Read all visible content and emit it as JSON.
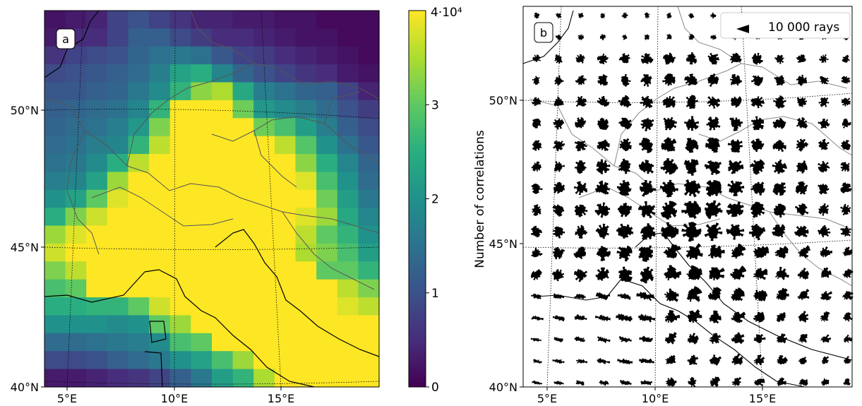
{
  "chart_data": [
    {
      "panel_label": "a",
      "type": "heatmap",
      "xlabel": "",
      "ylabel": "",
      "x_ticks": [
        "5°E",
        "10°E",
        "15°E"
      ],
      "y_ticks": [
        "40°N",
        "45°N",
        "50°N"
      ],
      "lon_range": [
        4,
        19.5
      ],
      "lat_range": [
        40,
        53.5
      ],
      "colorbar": {
        "label": "Number of correlations",
        "ticks": [
          "0",
          "1",
          "2",
          "3"
        ],
        "top_label": "4·10⁴",
        "range": [
          0,
          4
        ],
        "multiplier": "10^4",
        "colormap": "viridis"
      },
      "grid_values": [
        [
          0.2,
          0.3,
          0.4,
          0.8,
          1.0,
          0.8,
          0.6,
          0.4,
          0.4,
          0.3,
          0.3,
          0.2,
          0.2,
          0.1,
          0.1,
          0.1
        ],
        [
          0.3,
          0.5,
          0.5,
          0.8,
          1.2,
          1.2,
          0.9,
          0.7,
          0.5,
          0.5,
          0.4,
          0.3,
          0.2,
          0.2,
          0.1,
          0.1
        ],
        [
          0.6,
          0.8,
          0.9,
          1.0,
          1.3,
          1.5,
          1.6,
          1.5,
          1.1,
          0.8,
          0.7,
          0.5,
          0.4,
          0.3,
          0.2,
          0.1
        ],
        [
          0.9,
          1.0,
          1.1,
          1.2,
          1.4,
          1.7,
          2.3,
          2.5,
          1.8,
          1.3,
          1.0,
          0.8,
          0.6,
          0.5,
          0.3,
          0.2
        ],
        [
          1.1,
          1.1,
          1.2,
          1.3,
          1.6,
          1.9,
          2.6,
          3.3,
          3.5,
          2.4,
          1.7,
          1.5,
          1.3,
          1.2,
          0.8,
          0.4
        ],
        [
          1.2,
          1.3,
          1.4,
          1.5,
          1.8,
          2.6,
          4,
          4,
          4,
          3.1,
          2.1,
          1.9,
          1.7,
          1.4,
          1.0,
          0.7
        ],
        [
          1.3,
          1.4,
          1.5,
          1.7,
          2.1,
          3.2,
          4,
          4,
          4,
          4,
          3.1,
          2.8,
          2.2,
          1.7,
          1.2,
          0.9
        ],
        [
          1.4,
          1.5,
          1.7,
          1.8,
          2.6,
          3.6,
          4,
          4,
          4,
          4,
          4,
          3.6,
          2.9,
          2.0,
          1.5,
          1.1
        ],
        [
          1.5,
          1.6,
          1.9,
          2.5,
          3.6,
          4,
          4,
          4,
          4,
          4,
          4,
          4,
          3.3,
          2.5,
          1.8,
          1.3
        ],
        [
          1.7,
          1.8,
          2.3,
          3.4,
          4,
          4,
          4,
          4,
          4,
          4,
          4,
          4,
          3.8,
          2.8,
          2.0,
          1.4
        ],
        [
          2.0,
          2.3,
          3.0,
          3.8,
          4,
          4,
          4,
          4,
          4,
          4,
          4,
          4,
          4,
          3.1,
          2.2,
          1.6
        ],
        [
          2.5,
          3.2,
          3.7,
          4,
          4,
          4,
          4,
          4,
          4,
          4,
          4,
          4,
          3.8,
          3.4,
          2.4,
          1.8
        ],
        [
          3.4,
          3.8,
          4,
          4,
          4,
          4,
          4,
          4,
          4,
          4,
          4,
          4,
          3.6,
          3.0,
          2.6,
          2.0
        ],
        [
          3.7,
          4,
          4,
          4,
          4,
          4,
          4,
          4,
          4,
          4,
          4,
          4,
          3.5,
          3.2,
          2.8,
          2.2
        ],
        [
          3.2,
          3.6,
          4,
          4,
          4,
          4,
          4,
          4,
          4,
          4,
          4,
          4,
          4,
          3.0,
          3.0,
          2.6
        ],
        [
          2.8,
          3.0,
          4,
          4,
          4,
          4,
          4,
          4,
          4,
          4,
          4,
          4,
          4,
          4,
          3.6,
          3.2
        ],
        [
          2.5,
          2.5,
          2.6,
          2.6,
          3.0,
          3.7,
          4,
          4,
          4,
          4,
          4,
          4,
          4,
          4,
          3.8,
          3.6
        ],
        [
          2.0,
          2.0,
          2.0,
          1.9,
          2.0,
          3.0,
          3.4,
          4,
          4,
          4,
          4,
          4,
          4,
          4,
          4,
          4
        ],
        [
          1.4,
          1.4,
          1.5,
          1.6,
          1.7,
          1.9,
          2.8,
          3.0,
          4,
          4,
          4,
          4,
          4,
          4,
          4,
          4
        ],
        [
          0.9,
          0.9,
          1.0,
          1.2,
          1.4,
          1.6,
          2.0,
          2.3,
          2.8,
          3.4,
          4,
          4,
          4,
          4,
          4,
          4
        ],
        [
          0.3,
          0.3,
          0.4,
          0.5,
          0.6,
          0.8,
          1.2,
          1.6,
          2.2,
          2.6,
          3.5,
          4,
          4,
          4,
          4,
          4
        ]
      ]
    },
    {
      "panel_label": "b",
      "type": "scatter",
      "description_type": "ray direction roses",
      "x_ticks": [
        "5°E",
        "10°E",
        "15°E"
      ],
      "y_ticks": [
        "40°N",
        "45°N",
        "50°N"
      ],
      "legend": {
        "label": "10 000 rays",
        "placement": "top-right"
      }
    }
  ],
  "colors": {
    "rose": "#000000",
    "borders": "#555555",
    "coast": "#000000",
    "gridline": "#999999"
  }
}
